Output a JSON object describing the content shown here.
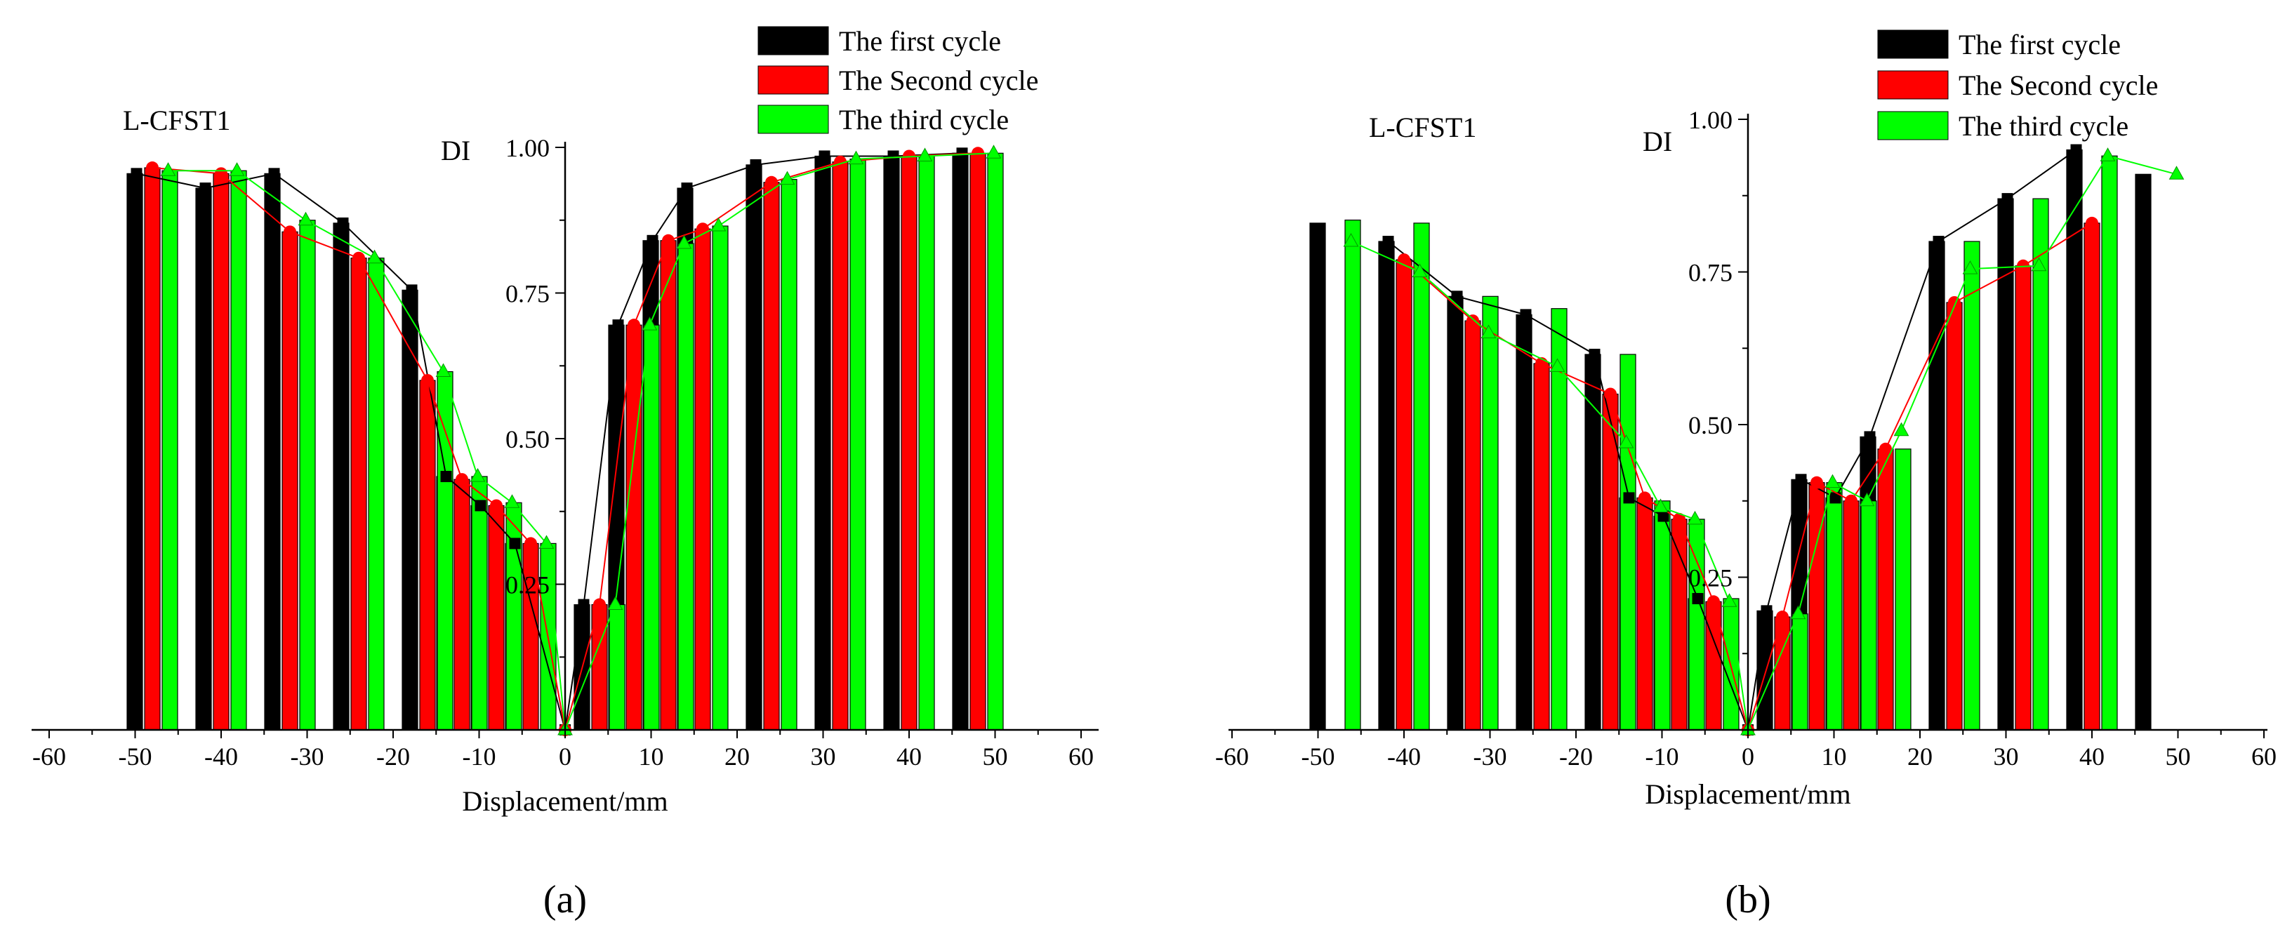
{
  "legend": {
    "labels": [
      "The first cycle",
      "The Second cycle",
      "The third cycle"
    ],
    "colors": [
      "#000000",
      "#ff0000",
      "#00ff00"
    ]
  },
  "chart_data": [
    {
      "type": "bar",
      "panel_label": "(a)",
      "title": "L-CFST1",
      "xlabel": "Displacement/mm",
      "ylabel": "DI",
      "xlim": [
        -60,
        60
      ],
      "ylim": [
        0,
        1.0
      ],
      "xticks": [
        "-60",
        "-50",
        "-40",
        "-30",
        "-20",
        "-10",
        "0",
        "10",
        "20",
        "30",
        "40",
        "50",
        "60"
      ],
      "yticks": [
        "0.25",
        "0.50",
        "0.75",
        "1.00"
      ],
      "x": [
        -48,
        -40,
        -32,
        -24,
        -16,
        -12,
        -8,
        -4,
        0,
        4,
        8,
        12,
        16,
        24,
        32,
        40,
        48
      ],
      "series": [
        {
          "name": "The first cycle",
          "color": "#000000",
          "values": [
            0.955,
            0.93,
            0.955,
            0.87,
            0.755,
            0.435,
            0.385,
            0.32,
            0.0,
            0.215,
            0.695,
            0.84,
            0.93,
            0.97,
            0.985,
            0.985,
            0.99
          ]
        },
        {
          "name": "The Second cycle",
          "color": "#ff0000",
          "values": [
            0.965,
            0.955,
            0.855,
            0.81,
            0.6,
            0.43,
            0.385,
            0.32,
            0.0,
            0.215,
            0.695,
            0.84,
            0.86,
            0.94,
            0.975,
            0.985,
            0.99
          ]
        },
        {
          "name": "The third cycle",
          "color": "#00ff00",
          "values": [
            0.96,
            0.96,
            0.875,
            0.81,
            0.615,
            0.435,
            0.39,
            0.32,
            0.0,
            0.215,
            0.695,
            0.835,
            0.865,
            0.945,
            0.98,
            0.985,
            0.99
          ]
        }
      ]
    },
    {
      "type": "bar",
      "panel_label": "(b)",
      "title": "L-CFST1",
      "xlabel": "Displacement/mm",
      "ylabel": "DI",
      "xlim": [
        -60,
        60
      ],
      "ylim": [
        0,
        1.0
      ],
      "xticks": [
        "-60",
        "-50",
        "-40",
        "-30",
        "-20",
        "-10",
        "0",
        "10",
        "20",
        "30",
        "40",
        "50",
        "60"
      ],
      "yticks": [
        "0.25",
        "0.50",
        "0.75",
        "1.00"
      ],
      "x": [
        -48,
        -40,
        -32,
        -24,
        -16,
        -12,
        -8,
        -4,
        0,
        4,
        8,
        12,
        16,
        24,
        32,
        40,
        48
      ],
      "series": [
        {
          "name": "The first cycle",
          "color": "#000000",
          "values": [
            0.83,
            0.8,
            0.71,
            0.68,
            0.615,
            0.38,
            0.35,
            0.215,
            0.0,
            0.195,
            0.41,
            0.38,
            0.48,
            0.8,
            0.87,
            0.95,
            0.91
          ]
        },
        {
          "name": "The Second cycle",
          "color": "#ff0000",
          "values": [
            null,
            0.77,
            0.67,
            0.6,
            0.55,
            0.38,
            0.345,
            0.21,
            0.0,
            0.185,
            0.405,
            0.375,
            0.46,
            0.7,
            0.76,
            0.83,
            null
          ]
        },
        {
          "name": "The third cycle",
          "color": "#00ff00",
          "values": [
            0.835,
            0.83,
            0.71,
            0.69,
            0.615,
            0.375,
            0.345,
            0.215,
            0.0,
            0.19,
            0.405,
            0.375,
            0.46,
            0.8,
            0.87,
            0.94,
            null
          ]
        }
      ],
      "line_overlay": {
        "The first cycle": {
          "x": [
            -40,
            -32,
            -24,
            -16,
            -12,
            -8,
            -4,
            0,
            4,
            8,
            12,
            16,
            24,
            32,
            40
          ],
          "y": [
            0.8,
            0.71,
            0.68,
            0.615,
            0.38,
            0.35,
            0.215,
            0.0,
            0.195,
            0.41,
            0.38,
            0.48,
            0.8,
            0.87,
            0.95
          ]
        },
        "The Second cycle": {
          "x": [
            -40,
            -32,
            -24,
            -16,
            -12,
            -8,
            -4,
            0,
            4,
            8,
            12,
            16,
            24,
            32,
            40
          ],
          "y": [
            0.77,
            0.67,
            0.6,
            0.55,
            0.38,
            0.345,
            0.21,
            0.0,
            0.185,
            0.405,
            0.375,
            0.46,
            0.7,
            0.76,
            0.83
          ]
        },
        "The third cycle": {
          "x": [
            -48,
            -40,
            -32,
            -24,
            -16,
            -12,
            -8,
            -4,
            0,
            4,
            8,
            12,
            16,
            24,
            32,
            40,
            48
          ],
          "y": [
            0.8,
            0.75,
            0.65,
            0.595,
            0.47,
            0.365,
            0.345,
            0.21,
            0.0,
            0.19,
            0.405,
            0.375,
            0.49,
            0.755,
            0.76,
            0.94,
            0.91
          ]
        }
      }
    }
  ]
}
